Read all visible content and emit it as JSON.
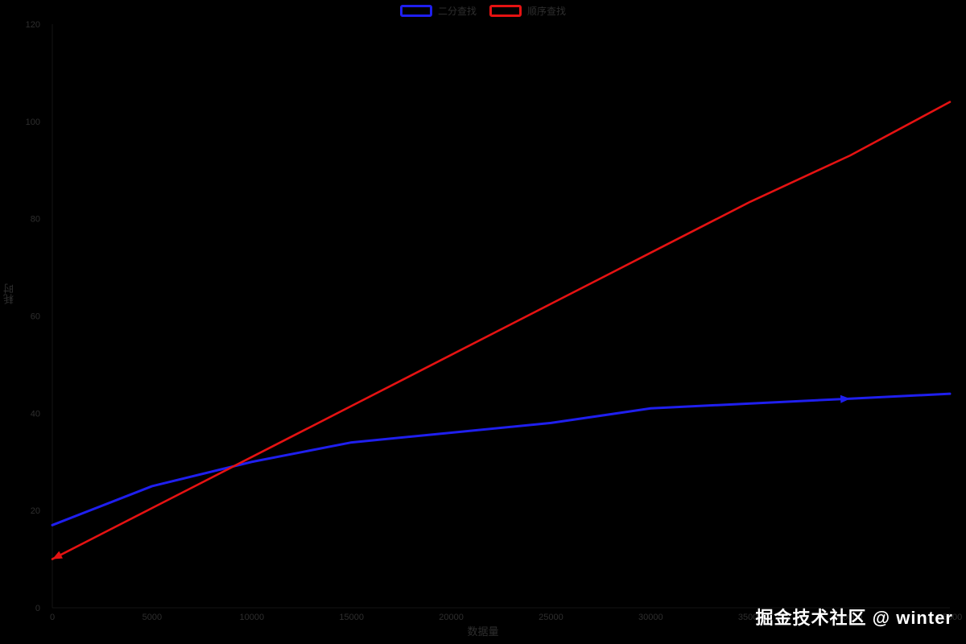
{
  "watermark": "掘金技术社区 @ winter",
  "colors": {
    "background": "#000000",
    "blue_line": "#1f1fee",
    "red_line": "#e51212",
    "axis_text": "#2e2e2e",
    "watermark_text": "#ffffff"
  },
  "chart_data": {
    "type": "line",
    "title": "",
    "xlabel": "数据量",
    "ylabel": "耗时",
    "xlim": [
      0,
      45000
    ],
    "ylim": [
      0,
      120
    ],
    "xticks": [
      0,
      5000,
      10000,
      15000,
      20000,
      25000,
      30000,
      35000,
      40000,
      45000
    ],
    "yticks": [
      0,
      20,
      40,
      60,
      80,
      100,
      120
    ],
    "grid": false,
    "legend_position": "top-center",
    "x": [
      0,
      5000,
      10000,
      15000,
      20000,
      25000,
      30000,
      35000,
      40000,
      45000
    ],
    "series": [
      {
        "name": "二分查找",
        "color": "#1f1fee",
        "values": [
          17,
          25,
          30,
          34,
          36,
          38,
          41,
          42,
          43,
          44
        ]
      },
      {
        "name": "顺序查找",
        "color": "#e51212",
        "values": [
          10,
          20.5,
          31,
          41.5,
          52,
          62.5,
          73,
          83.5,
          93,
          104
        ]
      }
    ]
  }
}
